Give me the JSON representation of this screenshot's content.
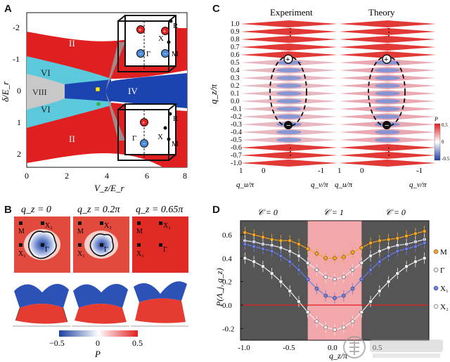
{
  "panels": {
    "a": {
      "letter": "A",
      "ylabel": "δ/E_r",
      "xlabel": "V_z/E_r",
      "xticks": [
        "0",
        "2",
        "4",
        "6",
        "8"
      ],
      "yticks": [
        "-2",
        "-1",
        "0",
        "1",
        "2"
      ],
      "regions": [
        "II",
        "VI",
        "VIII",
        "IV",
        "VI",
        "II"
      ],
      "inset_top_points": [
        "R",
        "M",
        "Γ",
        "X"
      ],
      "inset_bottom_points": [
        "R",
        "Γ",
        "X",
        "M"
      ],
      "colors": {
        "red": "#e02020",
        "cyan": "#5bc8dc",
        "blue": "#1c44b0",
        "gray": "#c8c8c8"
      }
    },
    "b": {
      "letter": "B",
      "titles": [
        "q_z = 0",
        "q_z = 0.2π",
        "q_z = 0.65π"
      ],
      "map_labels": [
        [
          "M",
          "X₂",
          "X₁",
          "Γ"
        ],
        [
          "M",
          "X₂",
          "X₁",
          "Γ"
        ],
        [
          "M",
          "X₂",
          "X₁",
          "Γ"
        ]
      ],
      "colorbar_ticks": [
        "−0.5",
        "0",
        "0.5"
      ],
      "colorbar_label": "P"
    },
    "c": {
      "letter": "C",
      "titles": [
        "Experiment",
        "Theory"
      ],
      "ylabel": "q_z/π",
      "yticks": [
        "1.0",
        "0.9",
        "0.8",
        "0.7",
        "0.6",
        "0.5",
        "0.4",
        "0.3",
        "0.2",
        "0.1",
        "0.0",
        "-0.1",
        "-0.2",
        "-0.3",
        "-0.4",
        "-0.5",
        "-0.6",
        "-0.7",
        "-1.0"
      ],
      "xlabel_u": "q_u/π",
      "xlabel_v": "q_v/π",
      "uticks": [
        "1",
        "0",
        "-1"
      ],
      "colorbar": {
        "label": "P",
        "ticks": [
          "0.5",
          "0",
          "-0.5"
        ]
      }
    },
    "d": {
      "letter": "D",
      "chern_labels": [
        "𝒞 = 0",
        "𝒞 = 1",
        "𝒞 = 0"
      ],
      "ylabel": "P(Λ_j, q_z)",
      "xlabel": "q_z/π"
    }
  },
  "chart_data": {
    "type": "line",
    "title": "",
    "xlabel": "q_z/π",
    "ylabel": "P(Λ_j, q_z)",
    "xlim": [
      -1.05,
      1.05
    ],
    "ylim": [
      -0.3,
      0.72
    ],
    "xticks": [
      -1.0,
      -0.5,
      0.0,
      0.5
    ],
    "yticks": [
      -0.2,
      0.0,
      0.2,
      0.4,
      0.6
    ],
    "shaded_region": [
      -0.3,
      0.3
    ],
    "x": [
      -1.0,
      -0.9,
      -0.8,
      -0.7,
      -0.6,
      -0.5,
      -0.4,
      -0.3,
      -0.2,
      -0.1,
      0.0,
      0.1,
      0.2,
      0.3,
      0.4,
      0.5,
      0.6,
      0.7,
      0.8,
      0.9,
      1.0
    ],
    "series": [
      {
        "name": "M",
        "color": "#f5a623",
        "values": [
          0.62,
          0.6,
          0.58,
          0.56,
          0.55,
          0.55,
          0.52,
          0.48,
          0.44,
          0.4,
          0.4,
          0.41,
          0.45,
          0.49,
          0.53,
          0.55,
          0.56,
          0.57,
          0.59,
          0.61,
          0.63
        ]
      },
      {
        "name": "Γ",
        "color": "#e8e8f0",
        "values": [
          0.55,
          0.54,
          0.52,
          0.51,
          0.49,
          0.46,
          0.42,
          0.36,
          0.3,
          0.24,
          0.22,
          0.24,
          0.3,
          0.36,
          0.42,
          0.46,
          0.49,
          0.51,
          0.52,
          0.54,
          0.56
        ]
      },
      {
        "name": "X₁",
        "color": "#6a7fe0",
        "values": [
          0.52,
          0.5,
          0.48,
          0.46,
          0.42,
          0.37,
          0.3,
          0.22,
          0.14,
          0.08,
          0.06,
          0.08,
          0.14,
          0.22,
          0.3,
          0.37,
          0.42,
          0.46,
          0.48,
          0.5,
          0.53
        ]
      },
      {
        "name": "X₂",
        "color": "#f0f0f0",
        "values": [
          0.4,
          0.37,
          0.33,
          0.27,
          0.2,
          0.12,
          0.03,
          -0.06,
          -0.14,
          -0.19,
          -0.21,
          -0.19,
          -0.14,
          -0.06,
          0.03,
          0.12,
          0.2,
          0.27,
          0.33,
          0.37,
          0.4
        ]
      }
    ]
  }
}
